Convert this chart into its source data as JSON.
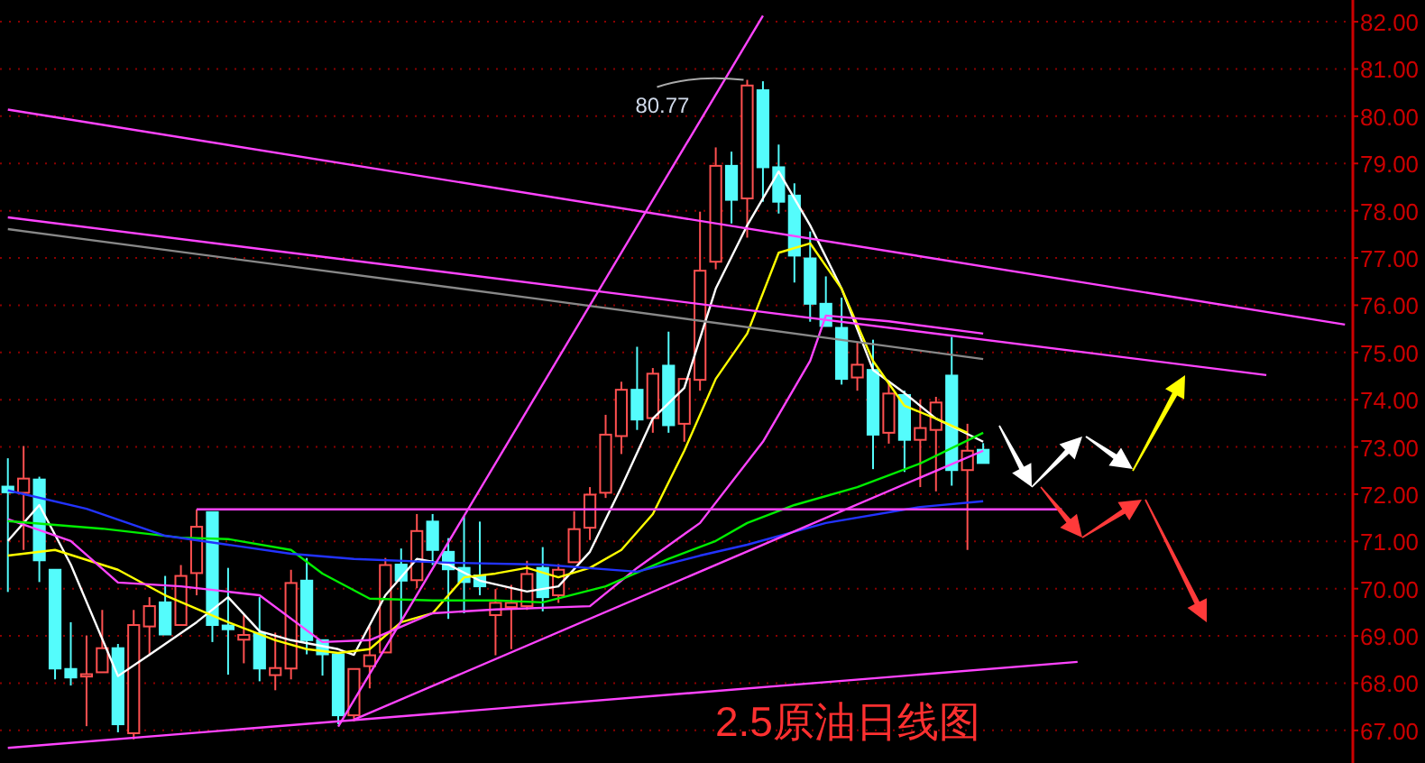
{
  "chart_data": {
    "type": "candlestick",
    "title": "2.5原油日线图",
    "categories": [
      null,
      null,
      null,
      null,
      null,
      null,
      null,
      null,
      null,
      null,
      null,
      null,
      null,
      null,
      null,
      null,
      null,
      null,
      null,
      null,
      null,
      null,
      null,
      null,
      null,
      null,
      null,
      null,
      null,
      null,
      null,
      null,
      null,
      null,
      null,
      null,
      null,
      null,
      null,
      null,
      null,
      null,
      null,
      null,
      null,
      null,
      null,
      null,
      null,
      null,
      null,
      null,
      null,
      null,
      null,
      null,
      null,
      null,
      null,
      null,
      null,
      null,
      null,
      null,
      null,
      null,
      null,
      null,
      null,
      null,
      null,
      null,
      null,
      null,
      null,
      null,
      null,
      null,
      null,
      null,
      null,
      null,
      null,
      null,
      null,
      null
    ],
    "ohlc": [
      [
        72.16,
        72.76,
        69.93,
        72.04
      ],
      [
        72.03,
        73.02,
        70.82,
        72.33
      ],
      [
        72.31,
        72.37,
        70.14,
        70.6
      ],
      [
        70.4,
        70.4,
        68.08,
        68.31
      ],
      [
        68.3,
        69.29,
        67.95,
        68.12
      ],
      [
        68.14,
        69.01,
        67.09,
        68.19
      ],
      [
        68.23,
        69.55,
        68.23,
        68.74
      ],
      [
        68.74,
        68.83,
        66.96,
        67.13
      ],
      [
        66.94,
        69.55,
        66.81,
        69.23
      ],
      [
        69.2,
        69.82,
        68.61,
        69.63
      ],
      [
        69.71,
        70.27,
        69.03,
        69.03
      ],
      [
        69.23,
        70.5,
        69.23,
        70.27
      ],
      [
        70.33,
        71.68,
        69.86,
        71.31
      ],
      [
        71.62,
        71.62,
        68.87,
        69.23
      ],
      [
        69.22,
        70.44,
        68.18,
        69.14
      ],
      [
        68.92,
        69.44,
        68.42,
        69.02
      ],
      [
        69.06,
        69.82,
        68.04,
        68.31
      ],
      [
        68.17,
        69.07,
        67.85,
        68.32
      ],
      [
        68.31,
        70.4,
        68.08,
        70.12
      ],
      [
        70.17,
        70.65,
        68.61,
        68.91
      ],
      [
        68.91,
        68.91,
        68.16,
        68.61
      ],
      [
        68.61,
        68.61,
        67.13,
        67.32
      ],
      [
        67.32,
        68.3,
        67.19,
        68.3
      ],
      [
        68.36,
        69.2,
        67.89,
        68.59
      ],
      [
        68.65,
        70.65,
        68.65,
        70.5
      ],
      [
        70.51,
        70.85,
        69.29,
        70.17
      ],
      [
        70.18,
        71.58,
        70.01,
        71.22
      ],
      [
        71.42,
        71.58,
        70.5,
        70.82
      ],
      [
        70.78,
        71.07,
        69.36,
        70.41
      ],
      [
        70.44,
        71.54,
        69.48,
        70.14
      ],
      [
        70.28,
        71.42,
        69.86,
        70.05
      ],
      [
        69.44,
        69.99,
        68.59,
        69.7
      ],
      [
        69.61,
        70.08,
        68.72,
        69.7
      ],
      [
        69.63,
        70.59,
        69.55,
        70.31
      ],
      [
        70.44,
        70.88,
        69.52,
        69.82
      ],
      [
        69.86,
        70.52,
        69.7,
        70.4
      ],
      [
        70.56,
        71.64,
        70.56,
        71.26
      ],
      [
        71.29,
        72.15,
        71.03,
        71.99
      ],
      [
        72.03,
        73.68,
        71.92,
        73.26
      ],
      [
        73.23,
        74.38,
        72.85,
        74.21
      ],
      [
        74.21,
        75.12,
        73.36,
        73.58
      ],
      [
        73.61,
        74.67,
        73.3,
        74.55
      ],
      [
        74.72,
        75.44,
        73.3,
        73.46
      ],
      [
        73.49,
        74.44,
        73.11,
        74.44
      ],
      [
        74.42,
        77.98,
        74.19,
        76.73
      ],
      [
        76.92,
        79.34,
        76.76,
        78.95
      ],
      [
        78.95,
        79.25,
        77.73,
        78.23
      ],
      [
        78.26,
        80.77,
        77.43,
        80.65
      ],
      [
        80.55,
        80.74,
        78.19,
        78.92
      ],
      [
        78.92,
        79.4,
        77.94,
        78.19
      ],
      [
        78.32,
        78.58,
        76.48,
        77.05
      ],
      [
        76.99,
        77.56,
        75.65,
        76.03
      ],
      [
        76.03,
        76.61,
        75.56,
        75.56
      ],
      [
        75.52,
        76.16,
        74.32,
        74.44
      ],
      [
        74.47,
        75.21,
        74.19,
        74.74
      ],
      [
        74.63,
        75.27,
        72.53,
        73.26
      ],
      [
        73.3,
        74.4,
        73.07,
        74.13
      ],
      [
        74.1,
        74.19,
        72.47,
        73.15
      ],
      [
        73.15,
        74.0,
        72.15,
        73.4
      ],
      [
        73.36,
        74.06,
        72.06,
        73.94
      ],
      [
        74.51,
        75.33,
        72.18,
        72.51
      ],
      [
        72.51,
        73.49,
        70.82,
        72.92
      ],
      [
        72.94,
        73.08,
        72.66,
        72.66
      ],
      null,
      null,
      null,
      null,
      null,
      null,
      null,
      null,
      null,
      null,
      null,
      null,
      null,
      null,
      null,
      null,
      null,
      null,
      null,
      null,
      null,
      null,
      null
    ],
    "series": [
      {
        "type": "line",
        "color": "#ffffff",
        "values": [
          71.01,
          null,
          71.77,
          null,
          70.51,
          null,
          null,
          68.15,
          null,
          68.6,
          null,
          null,
          69.29,
          null,
          69.82,
          null,
          69.1,
          null,
          68.91,
          null,
          null,
          68.72,
          68.6,
          null,
          69.86,
          null,
          70.63,
          null,
          70.51,
          null,
          70.17,
          null,
          null,
          69.94,
          null,
          70.05,
          null,
          70.78,
          null,
          72.15,
          null,
          73.6,
          null,
          74.25,
          null,
          76.35,
          null,
          77.69,
          null,
          78.83,
          null,
          77.69,
          null,
          76.35,
          null,
          74.63,
          null,
          74.14,
          null,
          73.6,
          null,
          null,
          73.11,
          null,
          null,
          null,
          null,
          null,
          null,
          null,
          null,
          null,
          null,
          null,
          null,
          null,
          null,
          null,
          null,
          null,
          null,
          null,
          null,
          null,
          null,
          null
        ]
      },
      {
        "type": "line",
        "color": "#ffff00",
        "values": [
          70.7,
          null,
          null,
          70.82,
          null,
          null,
          null,
          70.4,
          null,
          null,
          69.86,
          null,
          null,
          null,
          69.29,
          null,
          null,
          68.91,
          null,
          68.72,
          null,
          68.64,
          null,
          68.72,
          null,
          69.29,
          null,
          69.48,
          null,
          70.24,
          null,
          70.32,
          null,
          70.44,
          null,
          70.24,
          null,
          70.44,
          null,
          70.82,
          null,
          71.58,
          null,
          72.92,
          null,
          74.44,
          null,
          75.4,
          null,
          77.11,
          null,
          77.31,
          null,
          76.35,
          null,
          74.82,
          null,
          73.87,
          null,
          73.6,
          null,
          73.3,
          null,
          null,
          null,
          null,
          null,
          null,
          null,
          null,
          null,
          null,
          null,
          null,
          null,
          null,
          null,
          null,
          null,
          null,
          null,
          null,
          null,
          null,
          null,
          null
        ]
      },
      {
        "type": "line",
        "color": "#ff44ff",
        "values": [
          71.47,
          null,
          null,
          null,
          71.01,
          null,
          null,
          70.13,
          null,
          null,
          null,
          70.05,
          null,
          null,
          null,
          null,
          69.86,
          null,
          null,
          null,
          68.87,
          null,
          null,
          68.91,
          null,
          null,
          null,
          69.48,
          null,
          null,
          null,
          69.56,
          null,
          null,
          null,
          null,
          null,
          69.63,
          null,
          null,
          70.44,
          null,
          null,
          null,
          71.39,
          null,
          null,
          null,
          73.11,
          null,
          null,
          74.82,
          75.78,
          null,
          null,
          null,
          75.66,
          null,
          null,
          null,
          null,
          null,
          75.4,
          null,
          null,
          null,
          null,
          null,
          null,
          null,
          null,
          null,
          null,
          null,
          null,
          null,
          null,
          null,
          null,
          null,
          null,
          null,
          null,
          null,
          null,
          null
        ]
      },
      {
        "type": "line",
        "color": "#00ee00",
        "values": [
          71.43,
          null,
          null,
          null,
          null,
          null,
          71.27,
          null,
          null,
          null,
          null,
          71.08,
          null,
          null,
          71.05,
          null,
          null,
          null,
          70.82,
          null,
          70.32,
          null,
          null,
          69.79,
          null,
          null,
          null,
          69.75,
          null,
          null,
          null,
          69.75,
          null,
          null,
          69.71,
          null,
          null,
          null,
          70.05,
          null,
          null,
          null,
          70.63,
          null,
          null,
          71.01,
          null,
          71.39,
          null,
          null,
          71.77,
          null,
          null,
          null,
          72.15,
          null,
          null,
          null,
          72.65,
          null,
          null,
          null,
          73.3,
          null,
          null,
          null,
          null,
          null,
          null,
          null,
          null,
          null,
          null,
          null,
          null,
          null,
          null,
          null,
          null,
          null,
          null,
          null,
          null,
          null,
          null,
          null
        ]
      },
      {
        "type": "line",
        "color": "#2233ff",
        "values": [
          72.08,
          null,
          null,
          null,
          null,
          71.69,
          null,
          null,
          null,
          null,
          71.12,
          null,
          null,
          null,
          70.93,
          null,
          null,
          null,
          70.74,
          null,
          null,
          null,
          70.63,
          null,
          null,
          null,
          null,
          null,
          70.55,
          null,
          null,
          null,
          null,
          null,
          70.51,
          null,
          null,
          null,
          null,
          null,
          70.36,
          null,
          null,
          null,
          70.7,
          null,
          null,
          70.93,
          null,
          null,
          null,
          null,
          71.39,
          null,
          null,
          null,
          null,
          null,
          71.73,
          null,
          null,
          null,
          71.85,
          null,
          null,
          null,
          null,
          null,
          null,
          null,
          null,
          null,
          null,
          null,
          null,
          null,
          null,
          null,
          null,
          null,
          null,
          null,
          null,
          null,
          null,
          null
        ]
      },
      {
        "type": "line",
        "color": "#888888",
        "values": [
          77.61,
          null,
          null,
          null,
          null,
          null,
          null,
          null,
          null,
          null,
          null,
          null,
          null,
          null,
          null,
          null,
          null,
          null,
          null,
          null,
          null,
          null,
          null,
          null,
          null,
          null,
          null,
          null,
          null,
          null,
          null,
          null,
          null,
          null,
          76.12,
          null,
          null,
          null,
          null,
          null,
          null,
          null,
          null,
          null,
          null,
          null,
          null,
          null,
          null,
          null,
          null,
          null,
          null,
          null,
          null,
          null,
          null,
          null,
          null,
          null,
          null,
          null,
          74.86,
          null,
          null,
          null,
          null,
          null,
          null,
          null,
          null,
          null,
          null,
          null,
          null,
          null,
          null,
          null,
          null,
          null,
          null,
          null,
          null,
          null,
          null,
          null
        ]
      },
      {
        "type": "line",
        "color": "#ff44ff",
        "values": [
          80.14,
          null,
          null,
          null,
          null,
          null,
          null,
          null,
          null,
          null,
          null,
          null,
          null,
          null,
          null,
          null,
          null,
          null,
          null,
          null,
          null,
          null,
          null,
          null,
          null,
          null,
          null,
          null,
          null,
          null,
          null,
          null,
          null,
          null,
          null,
          null,
          null,
          null,
          null,
          null,
          null,
          null,
          null,
          null,
          null,
          null,
          null,
          null,
          null,
          null,
          null,
          null,
          null,
          null,
          null,
          null,
          null,
          null,
          null,
          null,
          null,
          null,
          null,
          null,
          null,
          null,
          null,
          null,
          null,
          null,
          null,
          null,
          null,
          null,
          null,
          null,
          null,
          null,
          null,
          null,
          null,
          null,
          null,
          null,
          null,
          75.59
        ]
      },
      {
        "type": "line",
        "color": "#ff44ff",
        "values": [
          77.86,
          null,
          null,
          null,
          null,
          null,
          null,
          null,
          null,
          null,
          null,
          null,
          null,
          null,
          null,
          null,
          null,
          null,
          null,
          null,
          null,
          null,
          null,
          null,
          null,
          null,
          null,
          null,
          null,
          null,
          null,
          null,
          null,
          null,
          null,
          null,
          null,
          null,
          null,
          null,
          null,
          null,
          null,
          null,
          null,
          null,
          null,
          null,
          null,
          null,
          null,
          null,
          null,
          null,
          null,
          null,
          null,
          null,
          null,
          null,
          null,
          null,
          null,
          null,
          null,
          null,
          null,
          null,
          null,
          null,
          null,
          null,
          null,
          null,
          null,
          null,
          null,
          null,
          null,
          null,
          74.52,
          null,
          null,
          null,
          null,
          null
        ]
      },
      {
        "type": "line",
        "color": "#ff44ff",
        "values": [
          null,
          null,
          null,
          null,
          null,
          null,
          null,
          null,
          null,
          null,
          null,
          null,
          null,
          null,
          null,
          null,
          null,
          null,
          null,
          null,
          null,
          67.08,
          null,
          null,
          null,
          null,
          null,
          null,
          null,
          null,
          null,
          null,
          null,
          null,
          null,
          null,
          null,
          null,
          null,
          null,
          null,
          null,
          null,
          null,
          null,
          null,
          null,
          null,
          82.13,
          null,
          null,
          null,
          null,
          null,
          null,
          null,
          null,
          null,
          null,
          null,
          null,
          null,
          null,
          null,
          null,
          null,
          null,
          null,
          null,
          null,
          null,
          null,
          null,
          null,
          null,
          null,
          null,
          null,
          null,
          null,
          null,
          null,
          null,
          null,
          null,
          null
        ]
      },
      {
        "type": "line",
        "color": "#ff44ff",
        "values": [
          null,
          null,
          null,
          null,
          null,
          null,
          null,
          null,
          null,
          null,
          null,
          null,
          null,
          null,
          null,
          null,
          null,
          null,
          null,
          null,
          null,
          null,
          67.23,
          null,
          null,
          null,
          null,
          null,
          null,
          null,
          null,
          null,
          null,
          null,
          null,
          null,
          null,
          null,
          null,
          null,
          null,
          null,
          null,
          null,
          null,
          null,
          null,
          null,
          null,
          null,
          null,
          null,
          null,
          null,
          null,
          null,
          null,
          null,
          null,
          null,
          null,
          null,
          72.92,
          null,
          null,
          null,
          null,
          null,
          null,
          null,
          null,
          null,
          null,
          null,
          null,
          null,
          null,
          null,
          null,
          null,
          null,
          null,
          null,
          null,
          null,
          null
        ]
      },
      {
        "type": "line",
        "color": "#ff44ff",
        "values": [
          66.63,
          null,
          null,
          null,
          null,
          null,
          null,
          null,
          null,
          null,
          null,
          null,
          null,
          null,
          null,
          null,
          null,
          null,
          null,
          null,
          null,
          null,
          null,
          null,
          null,
          null,
          null,
          null,
          null,
          null,
          null,
          null,
          null,
          null,
          null,
          null,
          null,
          null,
          null,
          null,
          null,
          null,
          null,
          null,
          null,
          null,
          null,
          null,
          null,
          null,
          null,
          null,
          null,
          null,
          null,
          null,
          null,
          null,
          null,
          null,
          null,
          null,
          null,
          null,
          null,
          null,
          null,
          null,
          68.45,
          null,
          null,
          null,
          null,
          null,
          null,
          null,
          null,
          null,
          null,
          null,
          null,
          null,
          null,
          null,
          null,
          null
        ]
      },
      {
        "type": "line",
        "color": "#ff44ff",
        "values": [
          null,
          null,
          null,
          null,
          null,
          null,
          null,
          null,
          null,
          null,
          null,
          null,
          71.68,
          null,
          null,
          null,
          null,
          null,
          null,
          null,
          null,
          null,
          null,
          null,
          null,
          null,
          null,
          null,
          null,
          null,
          null,
          null,
          null,
          null,
          null,
          null,
          null,
          null,
          null,
          null,
          null,
          null,
          null,
          null,
          null,
          null,
          null,
          null,
          null,
          null,
          null,
          null,
          null,
          null,
          null,
          null,
          null,
          null,
          null,
          null,
          null,
          null,
          null,
          null,
          null,
          null,
          null,
          71.68,
          null,
          null,
          null,
          null,
          null,
          null,
          null,
          null,
          null,
          null,
          null,
          null,
          null,
          null,
          null,
          null,
          null,
          null
        ]
      }
    ],
    "annotations": [
      "80.77"
    ],
    "ylim": [
      66.31,
      82.46
    ],
    "yticks": [
      {
        "value": 67,
        "label": "67.00"
      },
      {
        "value": 68,
        "label": "68.00"
      },
      {
        "value": 69,
        "label": "69.00"
      },
      {
        "value": 70,
        "label": "70.00"
      },
      {
        "value": 71,
        "label": "71.00"
      },
      {
        "value": 72,
        "label": "72.00"
      },
      {
        "value": 73,
        "label": "73.00"
      },
      {
        "value": 74,
        "label": "74.00"
      },
      {
        "value": 75,
        "label": "75.00"
      },
      {
        "value": 76,
        "label": "76.00"
      },
      {
        "value": 77,
        "label": "77.00"
      },
      {
        "value": 78,
        "label": "78.00"
      },
      {
        "value": 79,
        "label": "79.00"
      },
      {
        "value": 80,
        "label": "80.00"
      },
      {
        "value": 81,
        "label": "81.00"
      },
      {
        "value": 82,
        "label": "82.00"
      }
    ],
    "grid": "y",
    "tick_labels": "y"
  }
}
